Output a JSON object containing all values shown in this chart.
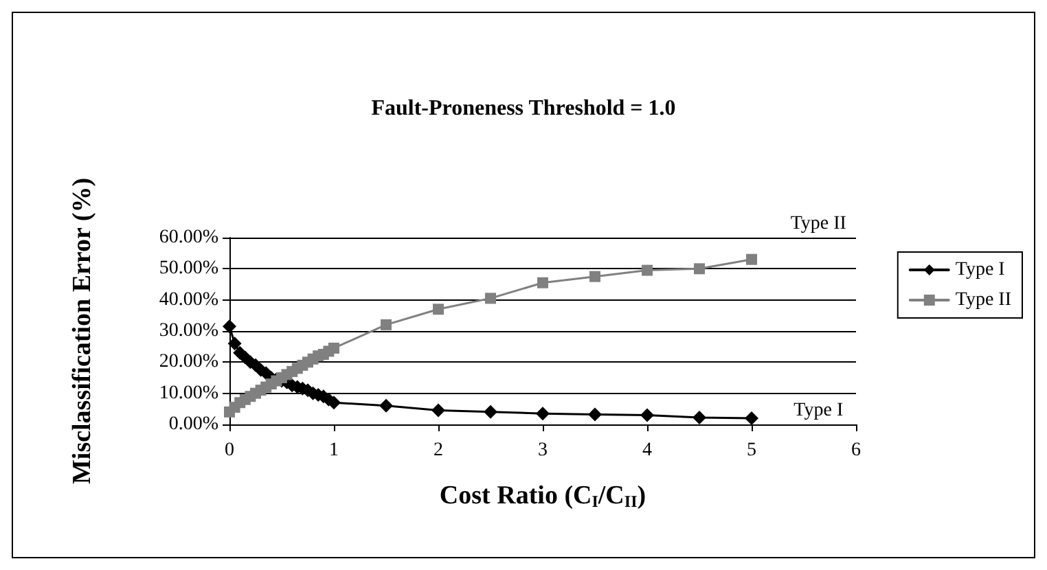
{
  "chart_data": {
    "type": "line",
    "title": "Fault-Proneness Threshold = 1.0",
    "xlabel": "Cost Ratio (C$_{I}$/C$_{II}$)",
    "ylabel": "Misclassification Error (%)",
    "x": [
      0,
      0.05,
      0.1,
      0.15,
      0.2,
      0.25,
      0.3,
      0.35,
      0.4,
      0.45,
      0.5,
      0.55,
      0.6,
      0.65,
      0.7,
      0.75,
      0.8,
      0.85,
      0.9,
      0.95,
      1,
      1.5,
      2,
      2.5,
      3,
      3.5,
      4,
      4.5,
      5
    ],
    "series": [
      {
        "name": "Type I",
        "color": "#000000",
        "marker": "diamond",
        "values": [
          31.5,
          26,
          23,
          21.5,
          20,
          19,
          17.5,
          16.5,
          15,
          14.5,
          14,
          13.5,
          12.5,
          12,
          11.5,
          11,
          10,
          9.5,
          9,
          8,
          7,
          6,
          4.5,
          4,
          3.5,
          3.2,
          3,
          2.2,
          2
        ]
      },
      {
        "name": "Type II",
        "color": "#808080",
        "marker": "square",
        "values": [
          4,
          5.5,
          7,
          8,
          9,
          10,
          11,
          12,
          13,
          14,
          15,
          16,
          17,
          18,
          19,
          20,
          21,
          22,
          22.5,
          23.5,
          24.5,
          32,
          37,
          40.5,
          45.5,
          47.5,
          49.5,
          50,
          53
        ]
      }
    ],
    "xlim": [
      0,
      6
    ],
    "xticks": [
      0,
      1,
      2,
      3,
      4,
      5,
      6
    ],
    "ylim": [
      0,
      60
    ],
    "yticks": [
      {
        "value": 0,
        "label": "0.00%"
      },
      {
        "value": 10,
        "label": "10.00%"
      },
      {
        "value": 20,
        "label": "20.00%"
      },
      {
        "value": 30,
        "label": "30.00%"
      },
      {
        "value": 40,
        "label": "40.00%"
      },
      {
        "value": 50,
        "label": "50.00%"
      },
      {
        "value": 60,
        "label": "60.00%"
      }
    ],
    "annotations": [
      "Type II",
      "Type I"
    ],
    "grid": "y",
    "legend": "right",
    "line_style": "solid"
  }
}
